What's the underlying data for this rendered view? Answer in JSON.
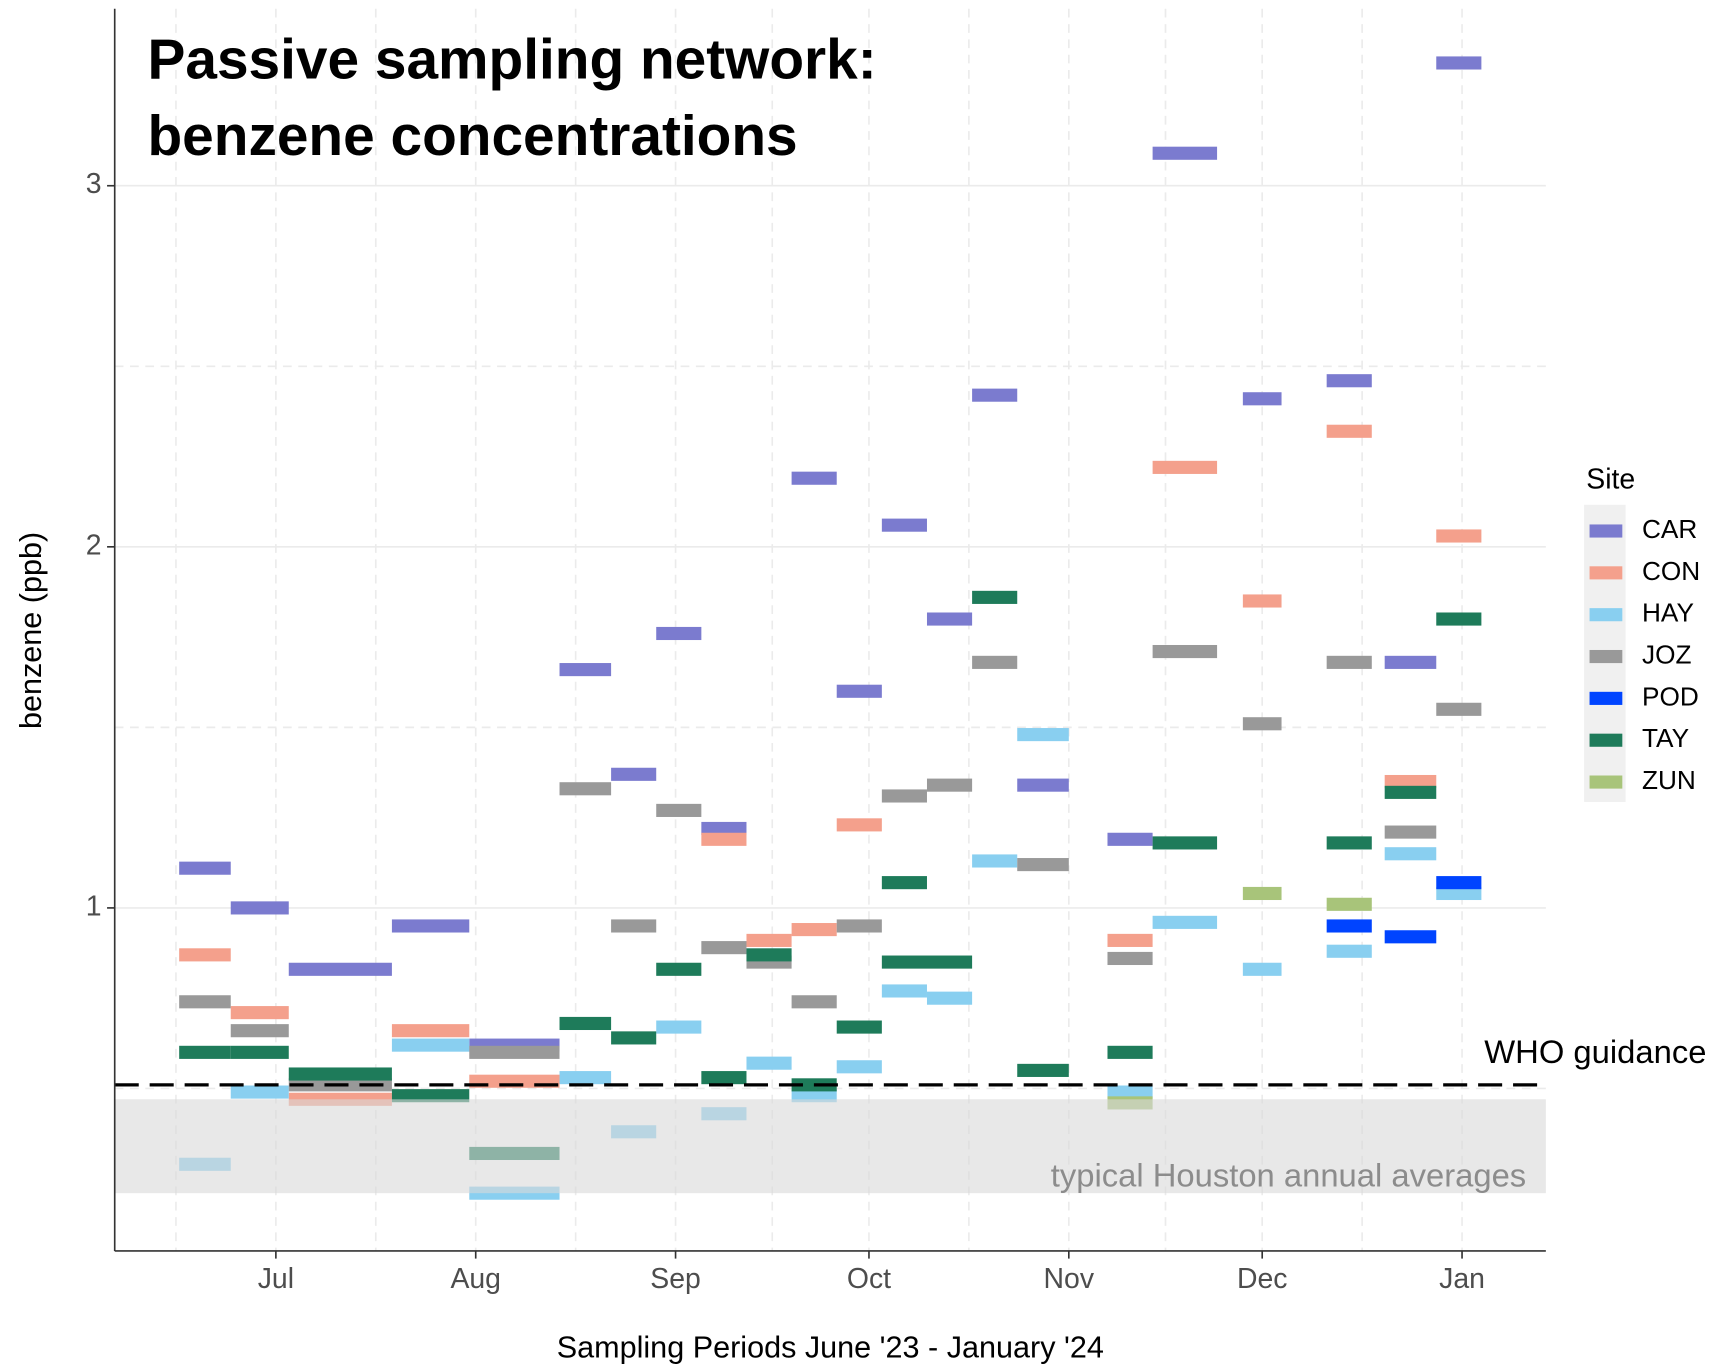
{
  "chart_data": {
    "type": "segment",
    "title": [
      "Passive sampling network:",
      "benzene concentrations"
    ],
    "x_label": "Sampling Periods June '23 - January '24",
    "y_label": "benzene (ppb)",
    "legend_title": "Site",
    "grid": true,
    "xlim": [
      157,
      379
    ],
    "ylim": [
      0.05,
      3.49
    ],
    "xticks": [
      {
        "value": 182,
        "label": "Jul"
      },
      {
        "value": 213,
        "label": "Aug"
      },
      {
        "value": 244,
        "label": "Sep"
      },
      {
        "value": 274,
        "label": "Oct"
      },
      {
        "value": 305,
        "label": "Nov"
      },
      {
        "value": 335,
        "label": "Dec"
      },
      {
        "value": 366,
        "label": "Jan"
      }
    ],
    "yticks": [
      1,
      2,
      3
    ],
    "who_guidance": {
      "value": 0.51,
      "label": "WHO guidance"
    },
    "typical_range": {
      "range": [
        0.21,
        0.47
      ],
      "label": "typical Houston annual averages"
    },
    "series": [
      {
        "name": "CAR",
        "color": "#7b7bcf",
        "x_start": [
          167,
          175,
          184,
          200,
          212,
          226,
          234,
          241,
          248,
          262,
          269,
          276,
          283,
          290,
          297,
          311,
          318,
          332,
          345,
          354,
          362
        ],
        "x_end": [
          175,
          184,
          200,
          212,
          226,
          234,
          241,
          248,
          255,
          269,
          276,
          283,
          290,
          297,
          305,
          318,
          328,
          338,
          352,
          362,
          369
        ],
        "values": [
          1.11,
          1.0,
          0.83,
          0.95,
          0.62,
          1.66,
          1.37,
          1.76,
          1.22,
          2.19,
          1.6,
          2.06,
          1.8,
          2.42,
          1.34,
          1.19,
          3.09,
          2.41,
          2.46,
          1.68,
          3.34
        ]
      },
      {
        "name": "CON",
        "color": "#f4a08c",
        "x_start": [
          167,
          175,
          184,
          200,
          212,
          248,
          255,
          262,
          269,
          311,
          318,
          332,
          345,
          354,
          362
        ],
        "x_end": [
          175,
          184,
          200,
          212,
          226,
          255,
          262,
          269,
          276,
          318,
          328,
          338,
          352,
          362,
          369
        ],
        "values": [
          0.87,
          0.71,
          0.47,
          0.66,
          0.52,
          1.19,
          0.91,
          0.94,
          1.23,
          0.91,
          2.22,
          1.85,
          2.32,
          1.35,
          2.03
        ]
      },
      {
        "name": "HAY",
        "color": "#89cff0",
        "x_start": [
          167,
          175,
          200,
          212,
          226,
          234,
          241,
          248,
          255,
          262,
          269,
          276,
          283,
          290,
          297,
          311,
          318,
          332,
          345,
          354,
          362
        ],
        "x_end": [
          175,
          184,
          212,
          226,
          234,
          241,
          248,
          255,
          262,
          269,
          276,
          283,
          290,
          297,
          305,
          318,
          328,
          338,
          352,
          362,
          369
        ],
        "values": [
          0.29,
          0.49,
          0.62,
          0.21,
          0.53,
          0.38,
          0.67,
          0.43,
          0.57,
          0.48,
          0.56,
          0.77,
          0.75,
          1.13,
          1.48,
          0.49,
          0.96,
          0.83,
          0.88,
          1.15,
          1.04
        ]
      },
      {
        "name": "JOZ",
        "color": "#999999",
        "x_start": [
          167,
          175,
          184,
          212,
          226,
          234,
          241,
          248,
          255,
          262,
          269,
          276,
          283,
          290,
          297,
          311,
          318,
          332,
          345,
          354,
          362
        ],
        "x_end": [
          175,
          184,
          200,
          226,
          234,
          241,
          248,
          255,
          262,
          269,
          276,
          283,
          290,
          297,
          305,
          318,
          328,
          338,
          352,
          362,
          369
        ],
        "values": [
          0.74,
          0.66,
          0.51,
          0.6,
          1.33,
          0.95,
          1.27,
          0.89,
          0.85,
          0.74,
          0.95,
          1.31,
          1.34,
          1.68,
          1.12,
          0.86,
          1.71,
          1.51,
          1.68,
          1.21,
          1.55
        ]
      },
      {
        "name": "POD",
        "color": "#0044ff",
        "x_start": [
          345,
          354,
          362
        ],
        "x_end": [
          352,
          362,
          369
        ],
        "values": [
          0.95,
          0.92,
          1.07
        ]
      },
      {
        "name": "TAY",
        "color": "#1e7b5a",
        "x_start": [
          167,
          175,
          184,
          200,
          212,
          226,
          234,
          241,
          248,
          255,
          262,
          269,
          276,
          276,
          290,
          297,
          311,
          318,
          345,
          354,
          362
        ],
        "x_end": [
          175,
          184,
          200,
          212,
          226,
          234,
          241,
          248,
          255,
          262,
          269,
          276,
          283,
          290,
          297,
          305,
          318,
          328,
          352,
          362,
          369
        ],
        "values": [
          0.6,
          0.6,
          0.54,
          0.48,
          0.32,
          0.68,
          0.64,
          0.83,
          0.53,
          0.87,
          0.51,
          0.67,
          1.07,
          0.85,
          1.86,
          0.55,
          0.6,
          1.18,
          1.18,
          1.32,
          1.8
        ]
      },
      {
        "name": "ZUN",
        "color": "#a8c47a",
        "x_start": [
          311,
          332,
          345
        ],
        "x_end": [
          318,
          338,
          352
        ],
        "values": [
          0.46,
          1.04,
          1.01
        ]
      }
    ]
  }
}
